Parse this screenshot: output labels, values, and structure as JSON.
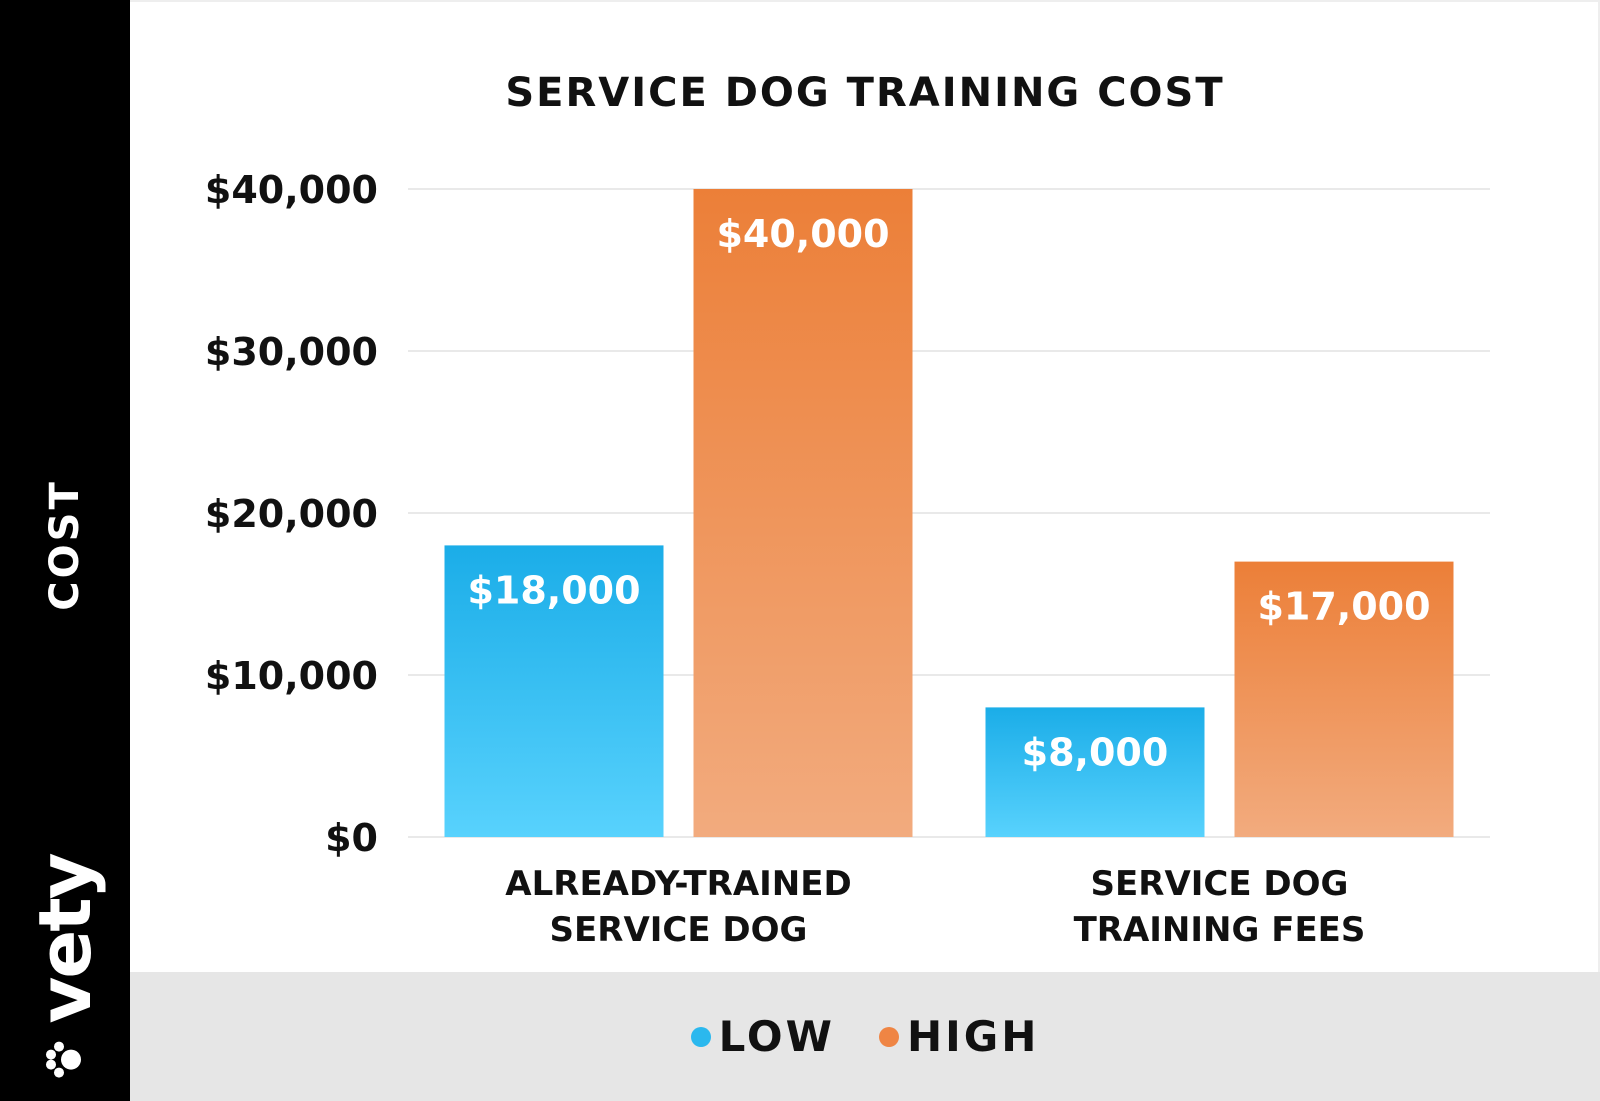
{
  "logo": {
    "text": "vety"
  },
  "colors": {
    "low": "#2bb8ee",
    "high": "#ef8544"
  },
  "chart_data": {
    "type": "bar",
    "title": "SERVICE DOG TRAINING COST",
    "ylabel": "COST",
    "xlabel": "",
    "ylim": [
      0,
      40000
    ],
    "yticks": [
      0,
      10000,
      20000,
      30000,
      40000
    ],
    "ytick_labels": [
      "$0",
      "$10,000",
      "$20,000",
      "$30,000",
      "$40,000"
    ],
    "categories": [
      [
        "ALREADY-TRAINED",
        "SERVICE DOG"
      ],
      [
        "SERVICE DOG",
        "TRAINING FEES"
      ]
    ],
    "series": [
      {
        "name": "LOW",
        "values": [
          18000,
          8000
        ],
        "labels": [
          "$18,000",
          "$8,000"
        ]
      },
      {
        "name": "HIGH",
        "values": [
          40000,
          17000
        ],
        "labels": [
          "$40,000",
          "$17,000"
        ]
      }
    ],
    "grid": true,
    "legend": "bottom"
  }
}
